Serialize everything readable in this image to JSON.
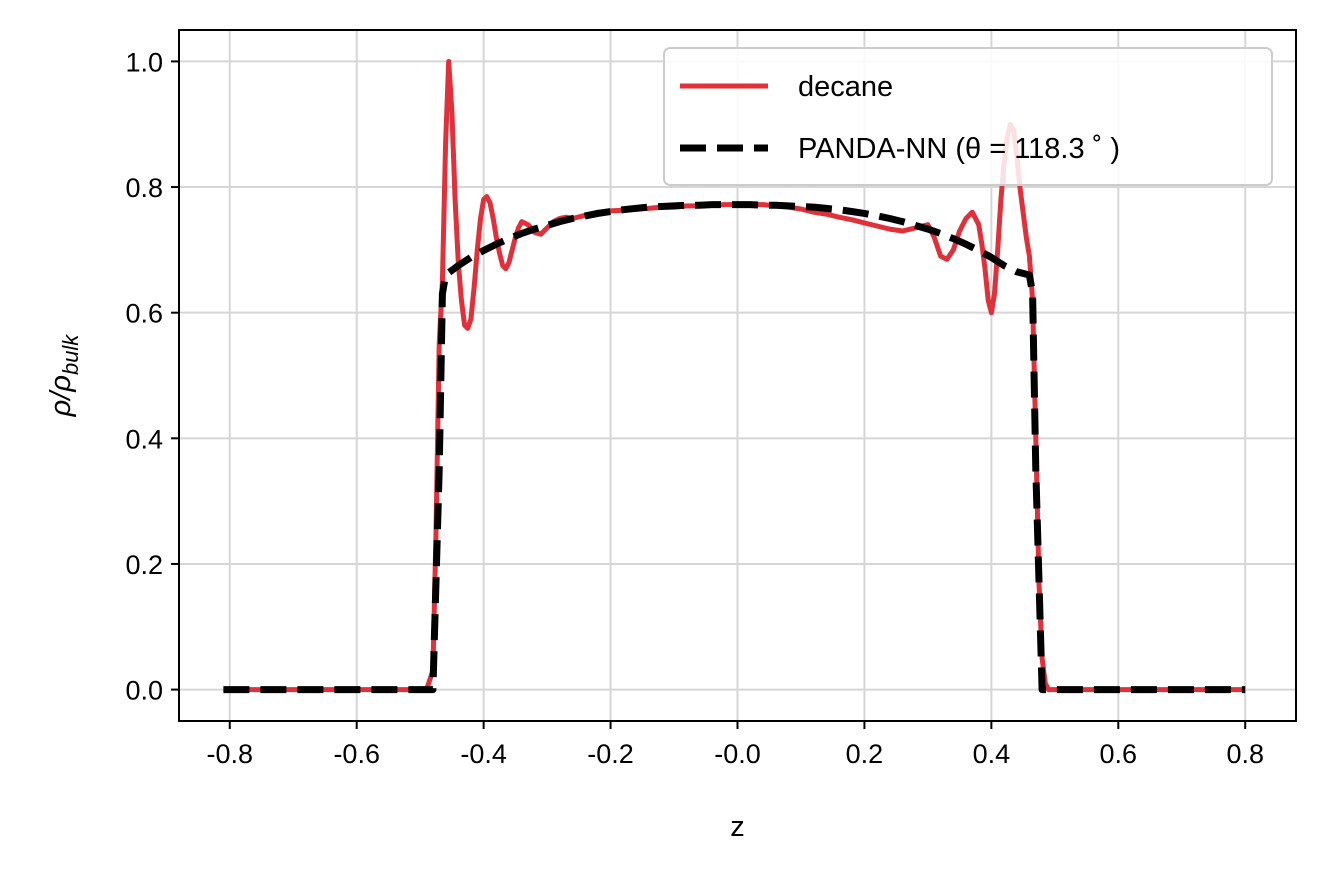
{
  "chart_data": {
    "type": "line",
    "xlabel": "z",
    "ylabel": {
      "base": "ρ/ρ",
      "subscript": "bulk"
    },
    "xlim": [
      -0.88,
      0.88
    ],
    "ylim": [
      -0.05,
      1.05
    ],
    "xticks": [
      -0.8,
      -0.6,
      -0.4,
      -0.2,
      0.0,
      0.2,
      0.4,
      0.6,
      0.8
    ],
    "xtick_labels": [
      "-0.8",
      "-0.6",
      "-0.4",
      "-0.2",
      "-0.0",
      "0.2",
      "0.4",
      "0.6",
      "0.8"
    ],
    "yticks": [
      0.0,
      0.2,
      0.4,
      0.6,
      0.8,
      1.0
    ],
    "ytick_labels": [
      "0.0",
      "0.2",
      "0.4",
      "0.6",
      "0.8",
      "1.0"
    ],
    "grid": true,
    "legend_position": "top-right",
    "series": [
      {
        "name": "decane",
        "color": "#e0303a",
        "style": "solid",
        "x": [
          -0.81,
          -0.6,
          -0.49,
          -0.48,
          -0.475,
          -0.47,
          -0.465,
          -0.46,
          -0.455,
          -0.45,
          -0.445,
          -0.44,
          -0.435,
          -0.43,
          -0.425,
          -0.42,
          -0.415,
          -0.41,
          -0.405,
          -0.4,
          -0.395,
          -0.39,
          -0.385,
          -0.38,
          -0.375,
          -0.37,
          -0.365,
          -0.36,
          -0.355,
          -0.35,
          -0.345,
          -0.34,
          -0.33,
          -0.32,
          -0.31,
          -0.3,
          -0.29,
          -0.28,
          -0.27,
          -0.26,
          -0.24,
          -0.22,
          -0.2,
          -0.18,
          -0.16,
          -0.14,
          -0.12,
          -0.1,
          -0.08,
          -0.06,
          -0.04,
          -0.02,
          0.0,
          0.02,
          0.04,
          0.06,
          0.08,
          0.1,
          0.12,
          0.14,
          0.16,
          0.18,
          0.2,
          0.22,
          0.24,
          0.26,
          0.28,
          0.3,
          0.31,
          0.32,
          0.33,
          0.34,
          0.35,
          0.36,
          0.37,
          0.38,
          0.385,
          0.39,
          0.395,
          0.4,
          0.405,
          0.41,
          0.415,
          0.42,
          0.425,
          0.43,
          0.435,
          0.44,
          0.445,
          0.45,
          0.455,
          0.46,
          0.465,
          0.47,
          0.475,
          0.48,
          0.485,
          0.49,
          0.5,
          0.6,
          0.8
        ],
        "y": [
          0.0,
          0.0,
          0.0,
          0.03,
          0.25,
          0.55,
          0.65,
          0.87,
          1.0,
          0.92,
          0.78,
          0.68,
          0.62,
          0.58,
          0.575,
          0.59,
          0.64,
          0.7,
          0.75,
          0.78,
          0.785,
          0.775,
          0.75,
          0.72,
          0.695,
          0.675,
          0.67,
          0.68,
          0.7,
          0.72,
          0.735,
          0.745,
          0.74,
          0.728,
          0.725,
          0.735,
          0.745,
          0.75,
          0.752,
          0.75,
          0.755,
          0.76,
          0.762,
          0.763,
          0.765,
          0.766,
          0.768,
          0.768,
          0.77,
          0.77,
          0.771,
          0.772,
          0.772,
          0.772,
          0.772,
          0.77,
          0.768,
          0.765,
          0.76,
          0.757,
          0.752,
          0.748,
          0.743,
          0.738,
          0.733,
          0.73,
          0.735,
          0.74,
          0.72,
          0.69,
          0.685,
          0.7,
          0.73,
          0.75,
          0.76,
          0.74,
          0.71,
          0.67,
          0.62,
          0.6,
          0.63,
          0.7,
          0.78,
          0.84,
          0.88,
          0.9,
          0.89,
          0.85,
          0.8,
          0.76,
          0.72,
          0.69,
          0.62,
          0.4,
          0.17,
          0.05,
          0.01,
          0.0,
          0.0,
          0.0,
          0.0
        ]
      },
      {
        "name": "PANDA-NN (θ = 118.3 ˚ )",
        "color": "#000000",
        "style": "dashed",
        "x": [
          -0.81,
          -0.6,
          -0.48,
          -0.47,
          -0.465,
          -0.46,
          -0.44,
          -0.42,
          -0.4,
          -0.38,
          -0.36,
          -0.34,
          -0.32,
          -0.3,
          -0.28,
          -0.26,
          -0.24,
          -0.22,
          -0.2,
          -0.18,
          -0.16,
          -0.14,
          -0.12,
          -0.1,
          -0.08,
          -0.06,
          -0.04,
          -0.02,
          0.0,
          0.02,
          0.04,
          0.06,
          0.08,
          0.1,
          0.12,
          0.14,
          0.16,
          0.18,
          0.2,
          0.22,
          0.24,
          0.26,
          0.28,
          0.3,
          0.32,
          0.34,
          0.36,
          0.38,
          0.4,
          0.42,
          0.44,
          0.46,
          0.465,
          0.47,
          0.48,
          0.6,
          0.8
        ],
        "y": [
          0.0,
          0.0,
          0.0,
          0.35,
          0.63,
          0.66,
          0.675,
          0.688,
          0.699,
          0.709,
          0.718,
          0.726,
          0.733,
          0.739,
          0.745,
          0.75,
          0.754,
          0.758,
          0.761,
          0.764,
          0.766,
          0.768,
          0.769,
          0.77,
          0.771,
          0.771,
          0.772,
          0.772,
          0.772,
          0.772,
          0.771,
          0.771,
          0.77,
          0.769,
          0.768,
          0.766,
          0.764,
          0.761,
          0.758,
          0.754,
          0.75,
          0.745,
          0.739,
          0.733,
          0.726,
          0.718,
          0.709,
          0.699,
          0.688,
          0.675,
          0.665,
          0.66,
          0.63,
          0.35,
          0.0,
          0.0,
          0.0
        ]
      }
    ]
  }
}
